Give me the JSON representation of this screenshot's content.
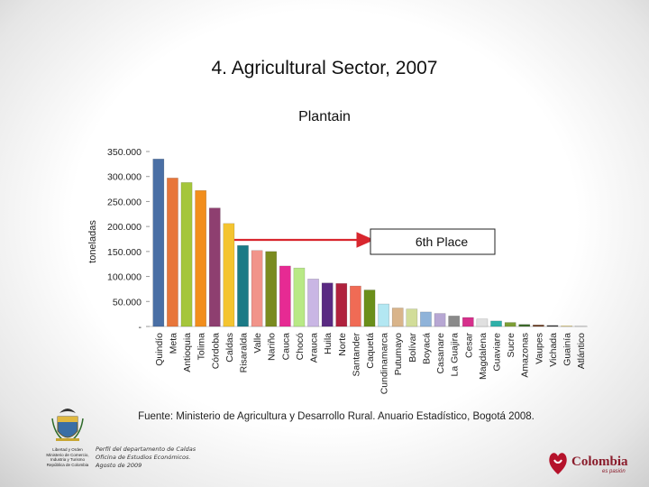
{
  "slide": {
    "title": "4. Agricultural Sector, 2007",
    "source": "Fuente: Ministerio de Agricultura y Desarrollo Rural. Anuario Estadístico, Bogotá  2008.",
    "footnote": [
      "Perfil del departamento de Caldas",
      "Oficina de Estudios Económicos.",
      "Agosto  de  2009"
    ],
    "crest_caption": [
      "Libertad y Orden",
      "Ministerio de Comercio,",
      "Industria y Turismo",
      "República de Colombia"
    ],
    "brand_word": "Colombia",
    "brand_tag": "es pasión"
  },
  "chart_data": {
    "type": "bar",
    "title": "Plantain",
    "ylabel": "toneladas",
    "ylim": [
      0,
      350000
    ],
    "yticks": [
      {
        "value": 0,
        "label": "-"
      },
      {
        "value": 50000,
        "label": "50.000"
      },
      {
        "value": 100000,
        "label": "100.000"
      },
      {
        "value": 150000,
        "label": "150.000"
      },
      {
        "value": 200000,
        "label": "200.000"
      },
      {
        "value": 250000,
        "label": "250.000"
      },
      {
        "value": 300000,
        "label": "300.000"
      },
      {
        "value": 350000,
        "label": "350.000"
      }
    ],
    "categories": [
      "Quindío",
      "Meta",
      "Antioquia",
      "Tolima",
      "Córdoba",
      "Caldas",
      "Risaralda",
      "Valle",
      "Nariño",
      "Cauca",
      "Chocó",
      "Arauca",
      "Huila",
      "Norte",
      "Santander",
      "Caquetá",
      "Cundinamarca",
      "Putumayo",
      "Bolívar",
      "Boyacá",
      "Casanare",
      "La Guajira",
      "Cesar",
      "Magdalena",
      "Guaviare",
      "Sucre",
      "Amazonas",
      "Vaupes",
      "Vichada",
      "Guainía",
      "Atlántico"
    ],
    "values": [
      335000,
      297000,
      288000,
      272000,
      237000,
      206000,
      162000,
      152000,
      150000,
      121000,
      117000,
      95000,
      87000,
      86000,
      81000,
      73000,
      45000,
      37000,
      35000,
      29000,
      26000,
      21000,
      18000,
      15000,
      11000,
      8000,
      4000,
      3000,
      2000,
      800,
      300
    ],
    "colors": [
      "#4a6fa5",
      "#e8763a",
      "#a5c63b",
      "#f28e1c",
      "#8e3f70",
      "#f4c430",
      "#1b7a86",
      "#f1948a",
      "#7a8b1f",
      "#e62a93",
      "#b8e986",
      "#c9b6e4",
      "#5a2a82",
      "#b0213d",
      "#f06b55",
      "#6a8f1a",
      "#b3e7f2",
      "#d9b48a",
      "#d2dd99",
      "#8fb3d9",
      "#b7a7d3",
      "#8a8a8a",
      "#d6308c",
      "#e0e0e0",
      "#2fb0a8",
      "#7d9e35",
      "#3d6b2a",
      "#6b3b1e",
      "#2e2e2e",
      "#f7e08a",
      "#f0f0f0"
    ],
    "annotation": {
      "label": "6th Place",
      "target": "Caldas"
    }
  }
}
